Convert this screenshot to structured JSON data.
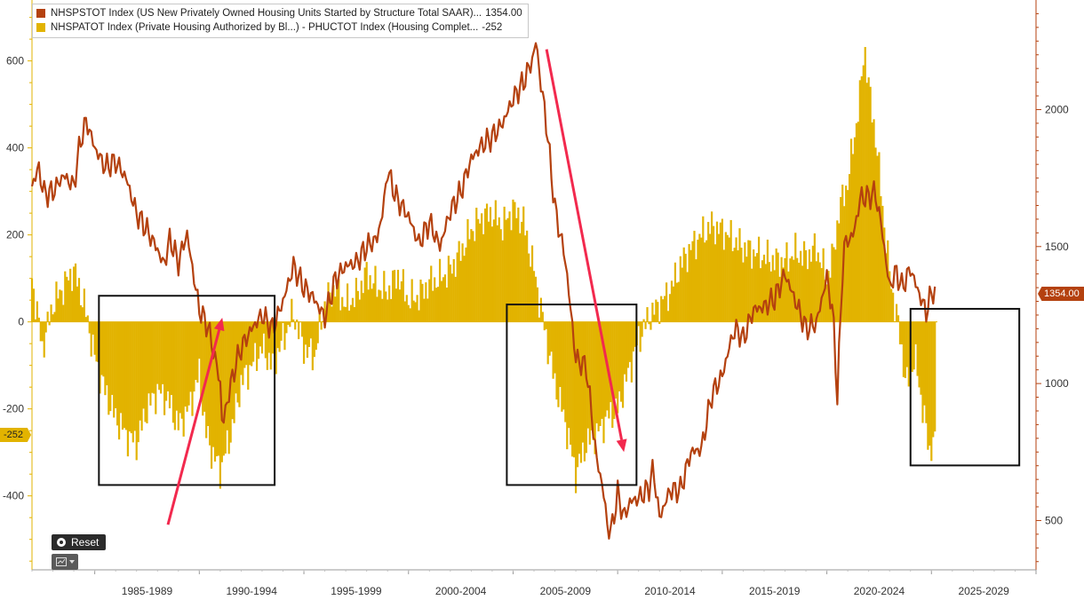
{
  "chart_data": {
    "type": "bar+line",
    "x_range": [
      1982.0,
      2030.0
    ],
    "x_tick_labels": [
      "1985-1989",
      "1990-1994",
      "1995-1999",
      "2000-2004",
      "2005-2009",
      "2010-2014",
      "2015-2019",
      "2020-2024",
      "2025-2029"
    ],
    "left_axis": {
      "ticks": [
        -400,
        -200,
        0,
        200,
        400,
        600
      ],
      "ylim": [
        -570,
        740
      ]
    },
    "right_axis": {
      "ticks": [
        500,
        1000,
        1500,
        2000
      ],
      "ylim": [
        320,
        2400
      ]
    },
    "legend": [
      {
        "label": "NHSPSTOT Index (US New Privately Owned Housing Units Started by Structure Total SAAR)...",
        "value": "1354.00",
        "color": "#b4410f"
      },
      {
        "label": "NHSPATOT Index (Private Housing Authorized by Bl...) - PHUCTOT Index (Housing Complet...",
        "value": "-252",
        "color": "#e2b300"
      }
    ],
    "series": [
      {
        "name": "NHSPSTOT Index (US New Privately Owned Housing Units Started by Structure Total SAAR)",
        "type": "line",
        "axis": "right",
        "color": "#b4410f",
        "points": [
          [
            1982.0,
            1720
          ],
          [
            1982.3,
            1790
          ],
          [
            1982.6,
            1690
          ],
          [
            1983.0,
            1700
          ],
          [
            1983.5,
            1760
          ],
          [
            1984.0,
            1720
          ],
          [
            1984.3,
            1880
          ],
          [
            1984.6,
            1960
          ],
          [
            1985.0,
            1860
          ],
          [
            1985.5,
            1790
          ],
          [
            1986.0,
            1810
          ],
          [
            1986.5,
            1750
          ],
          [
            1987.0,
            1620
          ],
          [
            1987.5,
            1560
          ],
          [
            1988.0,
            1490
          ],
          [
            1988.3,
            1430
          ],
          [
            1988.6,
            1530
          ],
          [
            1989.0,
            1440
          ],
          [
            1989.4,
            1550
          ],
          [
            1989.8,
            1360
          ],
          [
            1990.0,
            1270
          ],
          [
            1990.4,
            1210
          ],
          [
            1990.7,
            1110
          ],
          [
            1991.0,
            1000
          ],
          [
            1991.1,
            840
          ],
          [
            1991.4,
            960
          ],
          [
            1991.7,
            1060
          ],
          [
            1992.0,
            1130
          ],
          [
            1992.5,
            1200
          ],
          [
            1993.0,
            1250
          ],
          [
            1993.5,
            1200
          ],
          [
            1994.0,
            1300
          ],
          [
            1994.5,
            1430
          ],
          [
            1995.0,
            1350
          ],
          [
            1995.4,
            1320
          ],
          [
            1996.0,
            1240
          ],
          [
            1996.5,
            1380
          ],
          [
            1997.0,
            1430
          ],
          [
            1997.5,
            1440
          ],
          [
            1998.0,
            1500
          ],
          [
            1998.5,
            1530
          ],
          [
            1998.8,
            1640
          ],
          [
            1999.0,
            1780
          ],
          [
            1999.4,
            1680
          ],
          [
            2000.0,
            1610
          ],
          [
            2000.5,
            1510
          ],
          [
            2001.0,
            1590
          ],
          [
            2001.5,
            1500
          ],
          [
            2002.0,
            1630
          ],
          [
            2002.5,
            1700
          ],
          [
            2003.0,
            1820
          ],
          [
            2003.5,
            1870
          ],
          [
            2004.0,
            1900
          ],
          [
            2004.5,
            1950
          ],
          [
            2005.0,
            2040
          ],
          [
            2005.5,
            2100
          ],
          [
            2006.0,
            2200
          ],
          [
            2006.1,
            2265
          ],
          [
            2006.3,
            2100
          ],
          [
            2006.5,
            2010
          ],
          [
            2006.8,
            1790
          ],
          [
            2007.0,
            1640
          ],
          [
            2007.5,
            1450
          ],
          [
            2008.0,
            1090
          ],
          [
            2008.5,
            1060
          ],
          [
            2009.0,
            720
          ],
          [
            2009.3,
            620
          ],
          [
            2009.5,
            480
          ],
          [
            2009.7,
            460
          ],
          [
            2010.0,
            600
          ],
          [
            2010.3,
            510
          ],
          [
            2010.6,
            570
          ],
          [
            2011.0,
            580
          ],
          [
            2011.5,
            620
          ],
          [
            2011.7,
            690
          ],
          [
            2012.0,
            510
          ],
          [
            2012.5,
            610
          ],
          [
            2013.0,
            610
          ],
          [
            2013.5,
            750
          ],
          [
            2014.0,
            760
          ],
          [
            2014.5,
            960
          ],
          [
            2015.0,
            1030
          ],
          [
            2015.5,
            1180
          ],
          [
            2015.7,
            1200
          ],
          [
            2016.0,
            1160
          ],
          [
            2016.5,
            1270
          ],
          [
            2017.0,
            1280
          ],
          [
            2017.5,
            1310
          ],
          [
            2018.0,
            1400
          ],
          [
            2018.5,
            1300
          ],
          [
            2019.0,
            1200
          ],
          [
            2019.5,
            1220
          ],
          [
            2020.0,
            1390
          ],
          [
            2020.3,
            1250
          ],
          [
            2020.5,
            950
          ],
          [
            2020.8,
            1500
          ],
          [
            2021.0,
            1520
          ],
          [
            2021.3,
            1550
          ],
          [
            2021.6,
            1680
          ],
          [
            2022.0,
            1680
          ],
          [
            2022.3,
            1700
          ],
          [
            2022.6,
            1580
          ],
          [
            2023.0,
            1350
          ],
          [
            2023.3,
            1410
          ],
          [
            2023.6,
            1350
          ],
          [
            2024.0,
            1420
          ],
          [
            2024.3,
            1350
          ],
          [
            2024.6,
            1290
          ],
          [
            2024.75,
            1260
          ],
          [
            2025.0,
            1330
          ],
          [
            2025.2,
            1354
          ]
        ]
      },
      {
        "name": "NHSPATOT Index (Private Housing Authorized by Bl...) - PHUCTOT Index (Housing Complet...)",
        "type": "bar",
        "axis": "left",
        "color": "#e2b300",
        "points": [
          [
            1982.0,
            100
          ],
          [
            1982.5,
            -60
          ],
          [
            1983.0,
            40
          ],
          [
            1983.5,
            80
          ],
          [
            1984.0,
            120
          ],
          [
            1984.5,
            40
          ],
          [
            1985.0,
            -80
          ],
          [
            1985.5,
            -160
          ],
          [
            1986.0,
            -220
          ],
          [
            1986.5,
            -260
          ],
          [
            1987.0,
            -280
          ],
          [
            1987.5,
            -200
          ],
          [
            1988.0,
            -160
          ],
          [
            1988.5,
            -180
          ],
          [
            1989.0,
            -240
          ],
          [
            1989.5,
            -200
          ],
          [
            1990.0,
            -120
          ],
          [
            1990.3,
            -250
          ],
          [
            1990.6,
            -300
          ],
          [
            1991.0,
            -340
          ],
          [
            1991.5,
            -260
          ],
          [
            1992.0,
            -140
          ],
          [
            1992.5,
            -100
          ],
          [
            1993.0,
            -60
          ],
          [
            1993.5,
            -100
          ],
          [
            1994.0,
            -40
          ],
          [
            1994.5,
            20
          ],
          [
            1995.0,
            -60
          ],
          [
            1995.5,
            -80
          ],
          [
            1996.0,
            40
          ],
          [
            1996.5,
            80
          ],
          [
            1997.0,
            40
          ],
          [
            1997.5,
            60
          ],
          [
            1998.0,
            110
          ],
          [
            1998.5,
            80
          ],
          [
            1999.0,
            70
          ],
          [
            1999.5,
            110
          ],
          [
            2000.0,
            50
          ],
          [
            2000.5,
            60
          ],
          [
            2001.0,
            90
          ],
          [
            2001.5,
            100
          ],
          [
            2002.0,
            120
          ],
          [
            2002.5,
            160
          ],
          [
            2003.0,
            210
          ],
          [
            2003.5,
            240
          ],
          [
            2004.0,
            250
          ],
          [
            2004.5,
            220
          ],
          [
            2005.0,
            260
          ],
          [
            2005.5,
            230
          ],
          [
            2006.0,
            120
          ],
          [
            2006.3,
            40
          ],
          [
            2006.6,
            -40
          ],
          [
            2007.0,
            -140
          ],
          [
            2007.5,
            -230
          ],
          [
            2008.0,
            -350
          ],
          [
            2008.5,
            -280
          ],
          [
            2009.0,
            -260
          ],
          [
            2009.5,
            -220
          ],
          [
            2010.0,
            -200
          ],
          [
            2010.5,
            -120
          ],
          [
            2011.0,
            -40
          ],
          [
            2011.5,
            10
          ],
          [
            2012.0,
            40
          ],
          [
            2012.5,
            70
          ],
          [
            2013.0,
            130
          ],
          [
            2013.5,
            170
          ],
          [
            2014.0,
            200
          ],
          [
            2014.5,
            220
          ],
          [
            2015.0,
            210
          ],
          [
            2015.5,
            190
          ],
          [
            2016.0,
            170
          ],
          [
            2016.5,
            160
          ],
          [
            2017.0,
            150
          ],
          [
            2017.5,
            140
          ],
          [
            2018.0,
            140
          ],
          [
            2018.5,
            160
          ],
          [
            2019.0,
            150
          ],
          [
            2019.5,
            170
          ],
          [
            2020.0,
            100
          ],
          [
            2020.3,
            150
          ],
          [
            2020.6,
            260
          ],
          [
            2021.0,
            320
          ],
          [
            2021.3,
            420
          ],
          [
            2021.6,
            520
          ],
          [
            2021.8,
            640
          ],
          [
            2022.0,
            540
          ],
          [
            2022.3,
            440
          ],
          [
            2022.6,
            300
          ],
          [
            2022.9,
            150
          ],
          [
            2023.2,
            50
          ],
          [
            2023.5,
            -30
          ],
          [
            2023.8,
            -150
          ],
          [
            2024.2,
            -80
          ],
          [
            2024.6,
            -200
          ],
          [
            2024.9,
            -300
          ],
          [
            2025.2,
            -252
          ]
        ]
      }
    ],
    "annotations": {
      "boxes": [
        {
          "x": [
            1985.2,
            1993.6
          ],
          "y_left": [
            -375,
            60
          ]
        },
        {
          "x": [
            2004.7,
            2010.9
          ],
          "y_left": [
            -375,
            40
          ]
        },
        {
          "x": [
            2024.0,
            2029.2
          ],
          "y_left": [
            -330,
            30
          ]
        }
      ],
      "arrows": [
        {
          "from": [
            1988.5,
            485
          ],
          "to": [
            1991.1,
            1240
          ],
          "axis": "right"
        },
        {
          "from": [
            2006.6,
            2220
          ],
          "to": [
            2010.3,
            750
          ],
          "axis": "right"
        }
      ]
    },
    "tags": {
      "left_value": "-252",
      "right_value": "1354.00"
    }
  },
  "controls": {
    "reset_label": "Reset"
  }
}
